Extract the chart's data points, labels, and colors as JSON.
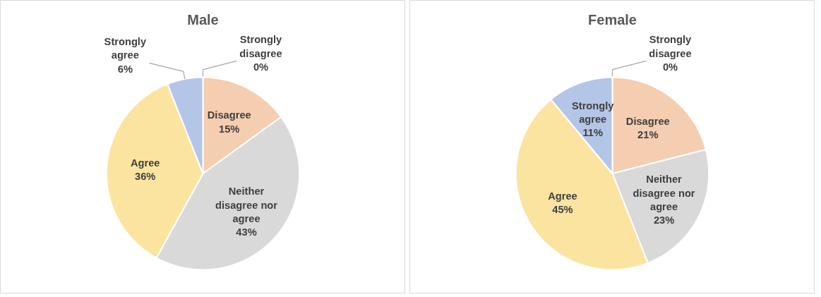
{
  "chart_data": [
    {
      "type": "pie",
      "title": "Male",
      "categories": [
        "Strongly disagree",
        "Disagree",
        "Neither disagree nor agree",
        "Agree",
        "Strongly agree"
      ],
      "values": [
        0,
        15,
        43,
        36,
        6
      ],
      "value_labels": [
        "0%",
        "15%",
        "43%",
        "36%",
        "6%"
      ],
      "colors": [
        "#a5a5a5",
        "#f5cdb0",
        "#d9d9d9",
        "#fbe4a0",
        "#b4c6e7"
      ]
    },
    {
      "type": "pie",
      "title": "Female",
      "categories": [
        "Strongly disagree",
        "Disagree",
        "Neither disagree nor agree",
        "Agree",
        "Strongly agree"
      ],
      "values": [
        0,
        21,
        23,
        45,
        11
      ],
      "value_labels": [
        "0%",
        "21%",
        "23%",
        "45%",
        "11%"
      ],
      "colors": [
        "#a5a5a5",
        "#f5cdb0",
        "#d9d9d9",
        "#fbe4a0",
        "#b4c6e7"
      ]
    }
  ]
}
